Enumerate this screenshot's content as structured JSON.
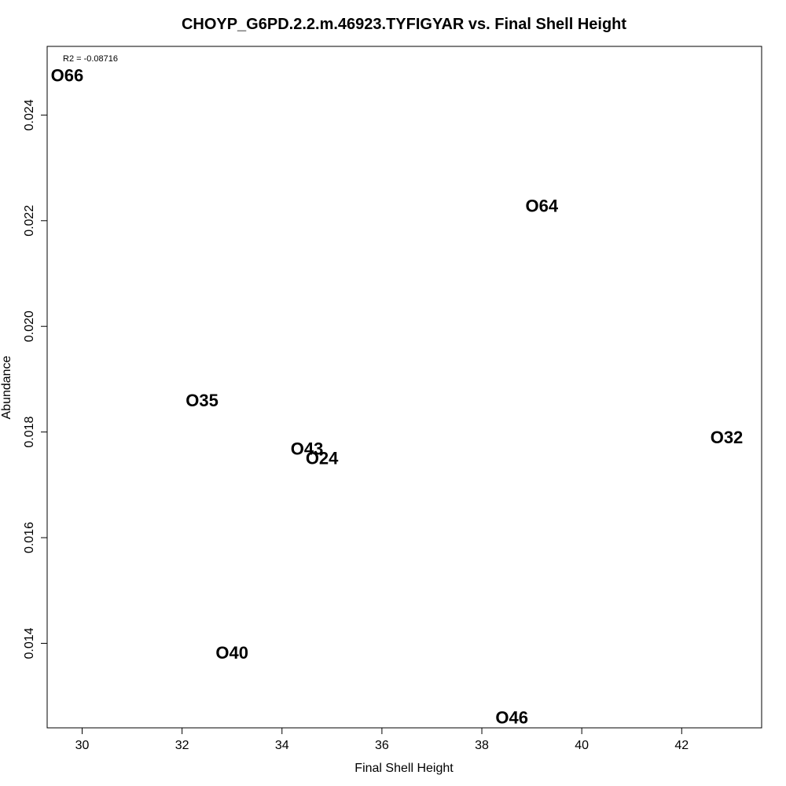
{
  "chart_data": {
    "type": "scatter",
    "title": "CHOYP_G6PD.2.2.m.46923.TYFIGYAR vs. Final Shell Height",
    "xlabel": "Final Shell Height",
    "ylabel": "Abundance",
    "annotation": "R2 = -0.08716",
    "xlim": [
      29.3,
      43.6
    ],
    "ylim": [
      0.0124,
      0.0253
    ],
    "x_ticks": [
      30,
      32,
      34,
      36,
      38,
      40,
      42
    ],
    "y_ticks": [
      0.014,
      0.016,
      0.018,
      0.02,
      0.022,
      0.024
    ],
    "x_tick_labels": [
      "30",
      "32",
      "34",
      "36",
      "38",
      "40",
      "42"
    ],
    "y_tick_labels": [
      "0.014",
      "0.016",
      "0.018",
      "0.020",
      "0.022",
      "0.024"
    ],
    "grid": false,
    "points": [
      {
        "label": "O66",
        "x": 29.7,
        "y": 0.02475
      },
      {
        "label": "O64",
        "x": 39.2,
        "y": 0.02228
      },
      {
        "label": "O35",
        "x": 32.4,
        "y": 0.0186
      },
      {
        "label": "O43",
        "x": 34.5,
        "y": 0.01768
      },
      {
        "label": "O24",
        "x": 34.8,
        "y": 0.0175
      },
      {
        "label": "O32",
        "x": 42.9,
        "y": 0.0179
      },
      {
        "label": "O40",
        "x": 33.0,
        "y": 0.01382
      },
      {
        "label": "O46",
        "x": 38.6,
        "y": 0.01259
      }
    ]
  }
}
